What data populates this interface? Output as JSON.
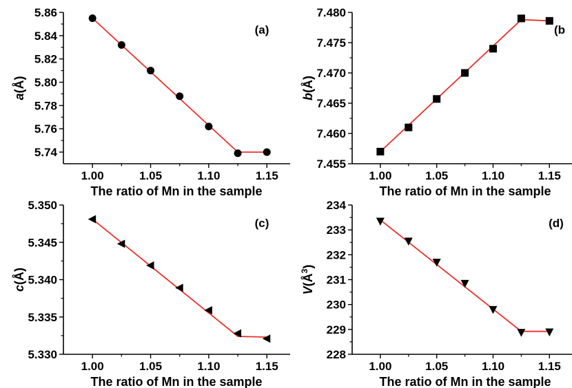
{
  "chart_data": [
    {
      "type": "scatter",
      "panel_label": "(a)",
      "xlabel": "The ratio of Mn in the sample",
      "ylabel_var": "a",
      "ylabel_unit": "(Å)",
      "ylabel_sup": "",
      "xlim": [
        0.975,
        1.17
      ],
      "ylim": [
        5.73,
        5.86
      ],
      "xticks": [
        1.0,
        1.05,
        1.1,
        1.15
      ],
      "xtick_labels": [
        "1.00",
        "1.05",
        "1.10",
        "1.15"
      ],
      "yticks": [
        5.74,
        5.76,
        5.78,
        5.8,
        5.82,
        5.84,
        5.86
      ],
      "ytick_labels": [
        "5.74",
        "5.76",
        "5.78",
        "5.80",
        "5.82",
        "5.84",
        "5.86"
      ],
      "marker": "circle",
      "marker_color": "#000000",
      "line_color": "#e8302a",
      "x": [
        1.0,
        1.025,
        1.05,
        1.075,
        1.1,
        1.125,
        1.15
      ],
      "y": [
        5.855,
        5.832,
        5.81,
        5.788,
        5.762,
        5.739,
        5.74
      ],
      "fit": [
        [
          1.0,
          5.855
        ],
        [
          1.125,
          5.74
        ],
        [
          1.15,
          5.74
        ]
      ]
    },
    {
      "type": "scatter",
      "panel_label": "(b",
      "xlabel": "The ratio of Mn in the sample",
      "ylabel_var": "b",
      "ylabel_unit": "(Å)",
      "ylabel_sup": "",
      "xlim": [
        0.975,
        1.17
      ],
      "ylim": [
        7.455,
        7.48
      ],
      "xticks": [
        1.0,
        1.05,
        1.1,
        1.15
      ],
      "xtick_labels": [
        "1.00",
        "1.05",
        "1.10",
        "1.15"
      ],
      "yticks": [
        7.455,
        7.46,
        7.465,
        7.47,
        7.475,
        7.48
      ],
      "ytick_labels": [
        "7.455",
        "7.460",
        "7.465",
        "7.470",
        "7.475",
        "7.480"
      ],
      "marker": "square",
      "marker_color": "#000000",
      "line_color": "#e8302a",
      "x": [
        1.0,
        1.025,
        1.05,
        1.075,
        1.1,
        1.125,
        1.15
      ],
      "y": [
        7.457,
        7.461,
        7.4657,
        7.47,
        7.474,
        7.479,
        7.4786
      ],
      "fit": [
        [
          1.0,
          7.457
        ],
        [
          1.125,
          7.4788
        ],
        [
          1.15,
          7.4786
        ]
      ]
    },
    {
      "type": "scatter",
      "panel_label": "(c)",
      "xlabel": "The ratio of Mn in the sample",
      "ylabel_var": "c",
      "ylabel_unit": "(Å)",
      "ylabel_sup": "",
      "xlim": [
        0.975,
        1.17
      ],
      "ylim": [
        5.33,
        5.35
      ],
      "xticks": [
        1.0,
        1.05,
        1.1,
        1.15
      ],
      "xtick_labels": [
        "1.00",
        "1.05",
        "1.10",
        "1.15"
      ],
      "yticks": [
        5.33,
        5.335,
        5.34,
        5.345,
        5.35
      ],
      "ytick_labels": [
        "5.330",
        "5.335",
        "5.340",
        "5.345",
        "5.350"
      ],
      "marker": "triangle-left",
      "marker_color": "#000000",
      "line_color": "#e8302a",
      "x": [
        1.0,
        1.025,
        1.05,
        1.075,
        1.1,
        1.125,
        1.15
      ],
      "y": [
        5.3481,
        5.3448,
        5.3419,
        5.3389,
        5.3359,
        5.3328,
        5.3321
      ],
      "fit": [
        [
          1.0,
          5.3481
        ],
        [
          1.125,
          5.3324
        ],
        [
          1.15,
          5.3323
        ]
      ]
    },
    {
      "type": "scatter",
      "panel_label": "(d)",
      "xlabel": "The ratio of Mn in the sample",
      "ylabel_var": "V",
      "ylabel_unit": "(Å",
      "ylabel_sup": "3",
      "ylabel_close": ")",
      "xlim": [
        0.975,
        1.17
      ],
      "ylim": [
        228,
        234
      ],
      "xticks": [
        1.0,
        1.05,
        1.1,
        1.15
      ],
      "xtick_labels": [
        "1.00",
        "1.05",
        "1.10",
        "1.15"
      ],
      "yticks": [
        228,
        229,
        230,
        231,
        232,
        233,
        234
      ],
      "ytick_labels": [
        "228",
        "229",
        "230",
        "231",
        "232",
        "233",
        "234"
      ],
      "marker": "triangle-down",
      "marker_color": "#000000",
      "line_color": "#e8302a",
      "x": [
        1.0,
        1.025,
        1.05,
        1.075,
        1.1,
        1.125,
        1.15
      ],
      "y": [
        233.35,
        232.55,
        231.7,
        230.85,
        229.8,
        228.88,
        228.9
      ],
      "fit": [
        [
          1.0,
          233.4
        ],
        [
          1.125,
          228.92
        ],
        [
          1.15,
          228.92
        ]
      ]
    }
  ]
}
